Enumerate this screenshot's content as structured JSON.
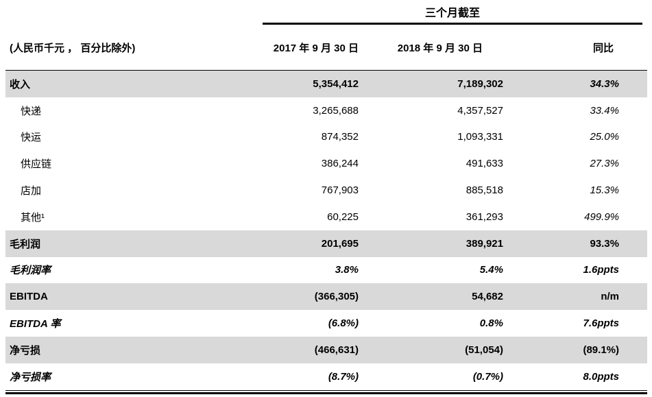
{
  "table": {
    "span_header": "三个月截至",
    "unit_note": "(人民币千元 ， 百分比除外)",
    "columns": [
      "2017 年 9 月 30 日",
      "2018 年 9 月 30 日",
      "同比"
    ],
    "rows": [
      {
        "label": "收入",
        "y2017": "5,354,412",
        "y2018": "7,189,302",
        "yoy": "34.3%"
      },
      {
        "label": "快递",
        "y2017": "3,265,688",
        "y2018": "4,357,527",
        "yoy": "33.4%"
      },
      {
        "label": "快运",
        "y2017": "874,352",
        "y2018": "1,093,331",
        "yoy": "25.0%"
      },
      {
        "label": "供应链",
        "y2017": "386,244",
        "y2018": "491,633",
        "yoy": "27.3%"
      },
      {
        "label": "店加",
        "y2017": "767,903",
        "y2018": "885,518",
        "yoy": "15.3%"
      },
      {
        "label": "其他¹",
        "y2017": "60,225",
        "y2018": "361,293",
        "yoy": "499.9%"
      },
      {
        "label": "毛利润",
        "y2017": "201,695",
        "y2018": "389,921",
        "yoy": "93.3%"
      },
      {
        "label": "毛利润率",
        "y2017": "3.8%",
        "y2018": "5.4%",
        "yoy": "1.6ppts"
      },
      {
        "label": "EBITDA",
        "y2017": "(366,305)",
        "y2018": "54,682",
        "yoy": "n/m"
      },
      {
        "label": "EBITDA 率",
        "y2017": "(6.8%)",
        "y2018": "0.8%",
        "yoy": "7.6ppts"
      },
      {
        "label": "净亏损",
        "y2017": "(466,631)",
        "y2018": "(51,054)",
        "yoy": "(89.1%)"
      },
      {
        "label": "净亏损率",
        "y2017": "(8.7%)",
        "y2018": "(0.7%)",
        "yoy": "8.0ppts"
      }
    ],
    "colors": {
      "row_highlight": "#d9d9d9",
      "rule": "#000000"
    }
  }
}
